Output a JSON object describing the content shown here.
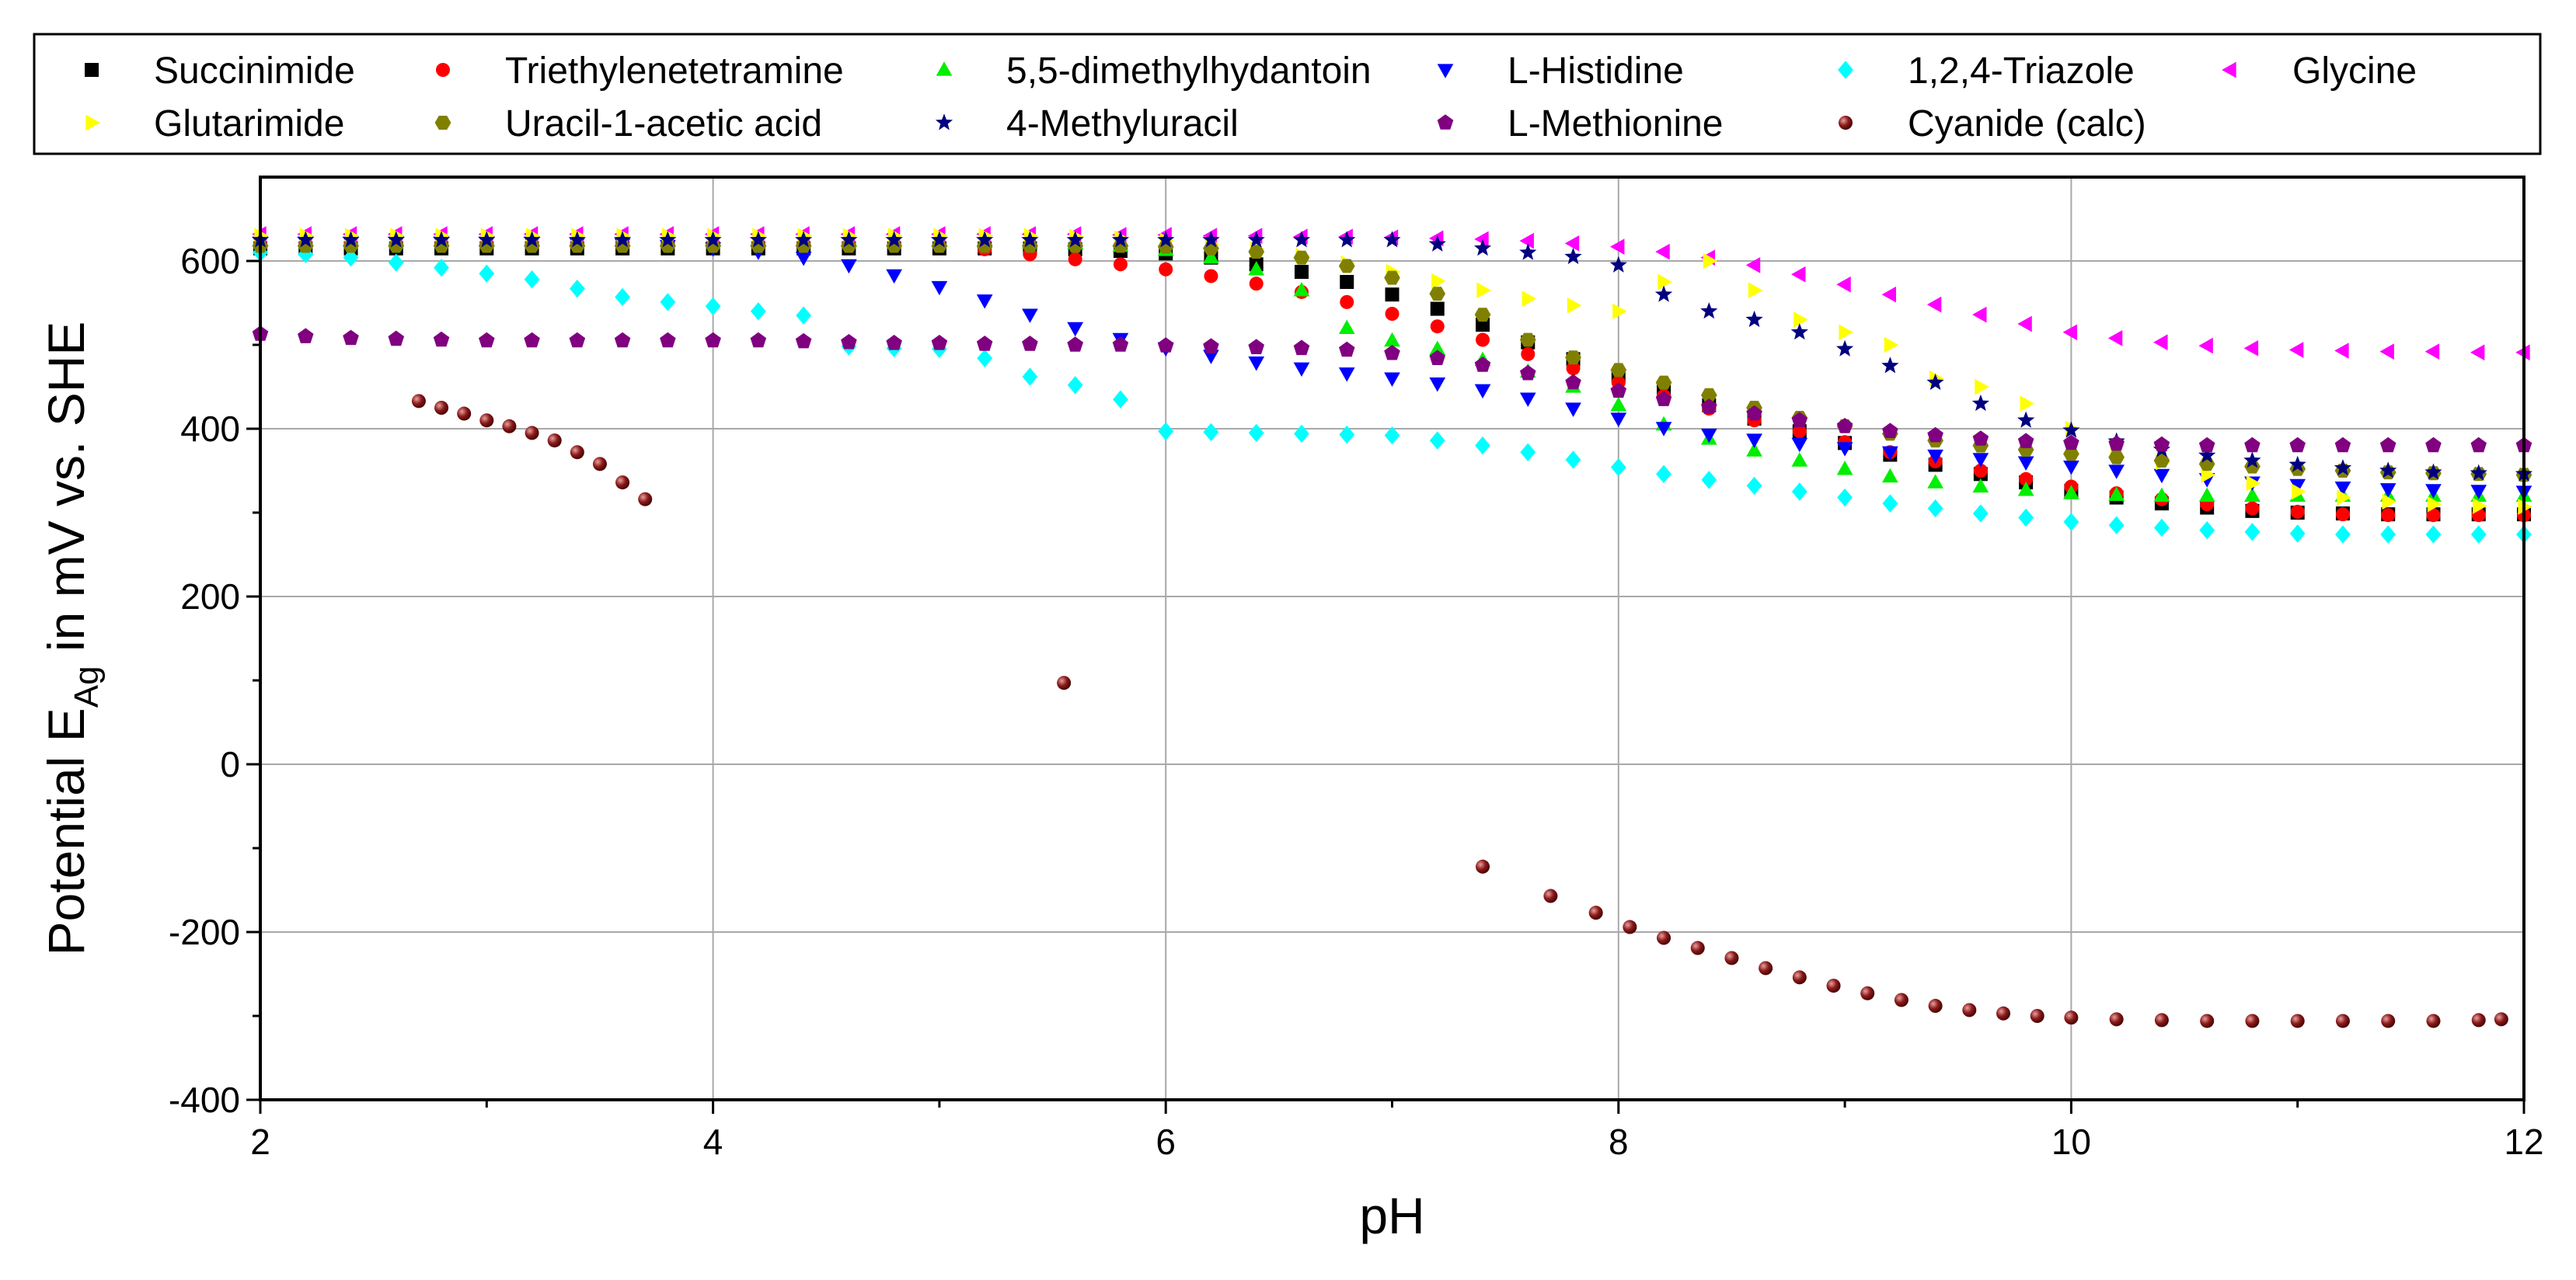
{
  "chart_data": {
    "type": "scatter",
    "title": "",
    "xlabel": "pH",
    "ylabel_main": "Potential E",
    "ylabel_sub": "Ag",
    "ylabel_tail": " in mV vs. SHE",
    "xlim": [
      2,
      12
    ],
    "ylim": [
      -400,
      700
    ],
    "xticks": [
      2,
      4,
      6,
      8,
      10,
      12
    ],
    "yticks": [
      -400,
      -200,
      0,
      200,
      400,
      600
    ],
    "grid": true,
    "legend_position": "top",
    "series": [
      {
        "name": "Succinimide",
        "color": "#000000",
        "marker": "square",
        "x": [
          2.0,
          2.2,
          2.4,
          2.6,
          2.8,
          3.0,
          3.2,
          3.4,
          3.6,
          3.8,
          4.0,
          4.2,
          4.4,
          4.6,
          4.8,
          5.0,
          5.2,
          5.4,
          5.6,
          5.8,
          6.0,
          6.2,
          6.4,
          6.6,
          6.8,
          7.0,
          7.2,
          7.4,
          7.6,
          7.8,
          8.0,
          8.2,
          8.4,
          8.6,
          8.8,
          9.0,
          9.2,
          9.4,
          9.6,
          9.8,
          10.0,
          10.2,
          10.4,
          10.6,
          10.8,
          11.0,
          11.2,
          11.4,
          11.6,
          11.8,
          12.0
        ],
        "y": [
          615,
          615,
          615,
          615,
          615,
          615,
          615,
          615,
          615,
          615,
          615,
          615,
          615,
          615,
          615,
          615,
          615,
          615,
          614,
          612,
          609,
          604,
          596,
          587,
          575,
          560,
          543,
          524,
          503,
          483,
          463,
          445,
          428,
          412,
          397,
          383,
          369,
          357,
          346,
          336,
          326,
          318,
          311,
          306,
          302,
          300,
          299,
          298,
          298,
          298,
          298
        ]
      },
      {
        "name": "Triethylenetetramine",
        "color": "#ff0000",
        "marker": "circle",
        "x": [
          2.0,
          2.2,
          2.4,
          2.6,
          2.8,
          3.0,
          3.2,
          3.4,
          3.6,
          3.8,
          4.0,
          4.2,
          4.4,
          4.6,
          4.8,
          5.0,
          5.2,
          5.4,
          5.6,
          5.8,
          6.0,
          6.2,
          6.4,
          6.6,
          6.8,
          7.0,
          7.2,
          7.4,
          7.6,
          7.8,
          8.0,
          8.2,
          8.4,
          8.6,
          8.8,
          9.0,
          9.2,
          9.4,
          9.6,
          9.8,
          10.0,
          10.2,
          10.4,
          10.6,
          10.8,
          11.0,
          11.2,
          11.4,
          11.6,
          11.8,
          12.0
        ],
        "y": [
          620,
          620,
          620,
          620,
          620,
          620,
          620,
          620,
          620,
          620,
          620,
          620,
          620,
          620,
          619,
          618,
          614,
          608,
          602,
          596,
          590,
          582,
          573,
          563,
          551,
          537,
          522,
          506,
          489,
          472,
          455,
          439,
          424,
          410,
          397,
          384,
          372,
          361,
          350,
          340,
          331,
          323,
          316,
          310,
          305,
          301,
          298,
          297,
          297,
          297,
          297
        ]
      },
      {
        "name": "5,5-dimethylhydantoin",
        "color": "#00ee00",
        "marker": "triangle-up",
        "x": [
          2.0,
          2.2,
          2.4,
          2.6,
          2.8,
          3.0,
          3.2,
          3.4,
          3.6,
          3.8,
          4.0,
          4.2,
          4.4,
          4.6,
          4.8,
          5.0,
          5.2,
          5.4,
          5.6,
          5.8,
          6.0,
          6.2,
          6.4,
          6.6,
          6.8,
          7.0,
          7.2,
          7.4,
          7.6,
          7.8,
          8.0,
          8.2,
          8.4,
          8.6,
          8.8,
          9.0,
          9.2,
          9.4,
          9.6,
          9.8,
          10.0,
          10.2,
          10.4,
          10.6,
          10.8,
          11.0,
          11.2,
          11.4,
          11.6,
          11.8,
          12.0
        ],
        "y": [
          625,
          625,
          625,
          625,
          625,
          625,
          625,
          625,
          625,
          625,
          625,
          625,
          625,
          624,
          624,
          624,
          623,
          622,
          621,
          618,
          613,
          604,
          590,
          565,
          520,
          505,
          495,
          482,
          468,
          450,
          428,
          405,
          388,
          374,
          362,
          352,
          343,
          336,
          331,
          327,
          323,
          321,
          320,
          320,
          320,
          320,
          320,
          320,
          320,
          320,
          320
        ]
      },
      {
        "name": "L-Histidine",
        "color": "#0000ff",
        "marker": "triangle-down",
        "x": [
          2.0,
          2.2,
          2.4,
          2.6,
          2.8,
          3.0,
          3.2,
          3.4,
          3.6,
          3.8,
          4.0,
          4.2,
          4.4,
          4.6,
          4.8,
          5.0,
          5.2,
          5.4,
          5.6,
          5.8,
          6.0,
          6.2,
          6.4,
          6.6,
          6.8,
          7.0,
          7.2,
          7.4,
          7.6,
          7.8,
          8.0,
          8.2,
          8.4,
          8.6,
          8.8,
          9.0,
          9.2,
          9.4,
          9.6,
          9.8,
          10.0,
          10.2,
          10.4,
          10.6,
          10.8,
          11.0,
          11.2,
          11.4,
          11.6,
          11.8,
          12.0
        ],
        "y": [
          622,
          622,
          622,
          622,
          622,
          622,
          622,
          621,
          620,
          618,
          615,
          611,
          604,
          595,
          583,
          569,
          553,
          536,
          520,
          507,
          496,
          487,
          479,
          472,
          466,
          460,
          454,
          446,
          436,
          424,
          412,
          401,
          393,
          387,
          382,
          377,
          372,
          368,
          364,
          360,
          355,
          350,
          345,
          340,
          336,
          333,
          330,
          328,
          327,
          326,
          325
        ]
      },
      {
        "name": "1,2,4-Triazole",
        "color": "#00ffff",
        "marker": "diamond",
        "x": [
          2.0,
          2.2,
          2.4,
          2.6,
          2.8,
          3.0,
          3.2,
          3.4,
          3.6,
          3.8,
          4.0,
          4.2,
          4.4,
          4.6,
          4.8,
          5.0,
          5.2,
          5.4,
          5.6,
          5.8,
          6.0,
          6.2,
          6.4,
          6.6,
          6.8,
          7.0,
          7.2,
          7.4,
          7.6,
          7.8,
          8.0,
          8.2,
          8.4,
          8.6,
          8.8,
          9.0,
          9.2,
          9.4,
          9.6,
          9.8,
          10.0,
          10.2,
          10.4,
          10.6,
          10.8,
          11.0,
          11.2,
          11.4,
          11.6,
          11.8,
          12.0
        ],
        "y": [
          610,
          608,
          604,
          598,
          592,
          585,
          578,
          567,
          557,
          551,
          546,
          540,
          535,
          498,
          496,
          495,
          484,
          462,
          452,
          435,
          397,
          396,
          395,
          394,
          393,
          392,
          386,
          380,
          372,
          363,
          354,
          346,
          339,
          332,
          325,
          318,
          311,
          305,
          299,
          294,
          289,
          285,
          282,
          279,
          277,
          275,
          274,
          274,
          274,
          274,
          274
        ]
      },
      {
        "name": "Glycine",
        "color": "#ff00ff",
        "marker": "triangle-left",
        "x": [
          2.0,
          2.2,
          2.4,
          2.6,
          2.8,
          3.0,
          3.2,
          3.4,
          3.6,
          3.8,
          4.0,
          4.2,
          4.4,
          4.6,
          4.8,
          5.0,
          5.2,
          5.4,
          5.6,
          5.8,
          6.0,
          6.2,
          6.4,
          6.6,
          6.8,
          7.0,
          7.2,
          7.4,
          7.6,
          7.8,
          8.0,
          8.2,
          8.4,
          8.6,
          8.8,
          9.0,
          9.2,
          9.4,
          9.6,
          9.8,
          10.0,
          10.2,
          10.4,
          10.6,
          10.8,
          11.0,
          11.2,
          11.4,
          11.6,
          11.8,
          12.0
        ],
        "y": [
          632,
          632,
          632,
          632,
          632,
          632,
          632,
          632,
          632,
          632,
          632,
          632,
          632,
          632,
          632,
          632,
          632,
          632,
          632,
          631,
          631,
          630,
          630,
          629,
          629,
          628,
          627,
          626,
          624,
          621,
          617,
          611,
          604,
          595,
          584,
          572,
          560,
          548,
          536,
          525,
          515,
          508,
          503,
          499,
          496,
          494,
          493,
          492,
          492,
          491,
          491
        ]
      },
      {
        "name": "Glutarimide",
        "color": "#ffff00",
        "marker": "triangle-right",
        "x": [
          2.0,
          2.2,
          2.4,
          2.6,
          2.8,
          3.0,
          3.2,
          3.4,
          3.6,
          3.8,
          4.0,
          4.2,
          4.4,
          4.6,
          4.8,
          5.0,
          5.2,
          5.4,
          5.6,
          5.8,
          6.0,
          6.2,
          6.4,
          6.6,
          6.8,
          7.0,
          7.2,
          7.4,
          7.6,
          7.8,
          8.0,
          8.2,
          8.4,
          8.6,
          8.8,
          9.0,
          9.2,
          9.4,
          9.6,
          9.8,
          10.0,
          10.2,
          10.4,
          10.6,
          10.8,
          11.0,
          11.2,
          11.4,
          11.6,
          11.8,
          12.0
        ],
        "y": [
          630,
          630,
          630,
          630,
          630,
          630,
          630,
          630,
          630,
          630,
          630,
          630,
          630,
          630,
          630,
          630,
          630,
          630,
          629,
          627,
          624,
          620,
          614,
          606,
          597,
          587,
          576,
          565,
          555,
          547,
          540,
          575,
          600,
          565,
          530,
          515,
          500,
          460,
          450,
          430,
          400,
          380,
          360,
          345,
          335,
          325,
          318,
          313,
          310,
          308,
          307
        ]
      },
      {
        "name": "Uracil-1-acetic acid",
        "color": "#808000",
        "marker": "hexagon",
        "x": [
          2.0,
          2.2,
          2.4,
          2.6,
          2.8,
          3.0,
          3.2,
          3.4,
          3.6,
          3.8,
          4.0,
          4.2,
          4.4,
          4.6,
          4.8,
          5.0,
          5.2,
          5.4,
          5.6,
          5.8,
          6.0,
          6.2,
          6.4,
          6.6,
          6.8,
          7.0,
          7.2,
          7.4,
          7.6,
          7.8,
          8.0,
          8.2,
          8.4,
          8.6,
          8.8,
          9.0,
          9.2,
          9.4,
          9.6,
          9.8,
          10.0,
          10.2,
          10.4,
          10.6,
          10.8,
          11.0,
          11.2,
          11.4,
          11.6,
          11.8,
          12.0
        ],
        "y": [
          618,
          618,
          618,
          618,
          618,
          618,
          618,
          618,
          618,
          618,
          618,
          618,
          618,
          618,
          618,
          618,
          618,
          618,
          618,
          618,
          617,
          615,
          611,
          604,
          594,
          580,
          561,
          536,
          506,
          485,
          470,
          455,
          440,
          425,
          413,
          403,
          394,
          386,
          380,
          375,
          370,
          366,
          362,
          358,
          355,
          352,
          350,
          348,
          347,
          346,
          345
        ]
      },
      {
        "name": "4-Methyluracil",
        "color": "#000080",
        "marker": "star",
        "x": [
          2.0,
          2.2,
          2.4,
          2.6,
          2.8,
          3.0,
          3.2,
          3.4,
          3.6,
          3.8,
          4.0,
          4.2,
          4.4,
          4.6,
          4.8,
          5.0,
          5.2,
          5.4,
          5.6,
          5.8,
          6.0,
          6.2,
          6.4,
          6.6,
          6.8,
          7.0,
          7.2,
          7.4,
          7.6,
          7.8,
          8.0,
          8.2,
          8.4,
          8.6,
          8.8,
          9.0,
          9.2,
          9.4,
          9.6,
          9.8,
          10.0,
          10.2,
          10.4,
          10.6,
          10.8,
          11.0,
          11.2,
          11.4,
          11.6,
          11.8,
          12.0
        ],
        "y": [
          625,
          625,
          625,
          625,
          625,
          625,
          625,
          625,
          625,
          625,
          625,
          625,
          625,
          625,
          625,
          625,
          625,
          625,
          625,
          625,
          625,
          625,
          625,
          625,
          625,
          625,
          620,
          615,
          610,
          605,
          595,
          560,
          540,
          530,
          515,
          495,
          475,
          455,
          430,
          410,
          398,
          385,
          375,
          368,
          362,
          357,
          353,
          350,
          348,
          347,
          346
        ]
      },
      {
        "name": "L-Methionine",
        "color": "#800080",
        "marker": "pentagon",
        "x": [
          2.0,
          2.2,
          2.4,
          2.6,
          2.8,
          3.0,
          3.2,
          3.4,
          3.6,
          3.8,
          4.0,
          4.2,
          4.4,
          4.6,
          4.8,
          5.0,
          5.2,
          5.4,
          5.6,
          5.8,
          6.0,
          6.2,
          6.4,
          6.6,
          6.8,
          7.0,
          7.2,
          7.4,
          7.6,
          7.8,
          8.0,
          8.2,
          8.4,
          8.6,
          8.8,
          9.0,
          9.2,
          9.4,
          9.6,
          9.8,
          10.0,
          10.2,
          10.4,
          10.6,
          10.8,
          11.0,
          11.2,
          11.4,
          11.6,
          11.8,
          12.0
        ],
        "y": [
          513,
          510,
          508,
          507,
          506,
          505,
          505,
          505,
          505,
          505,
          505,
          505,
          504,
          503,
          502,
          502,
          501,
          501,
          500,
          500,
          499,
          498,
          497,
          496,
          494,
          490,
          484,
          476,
          466,
          455,
          445,
          435,
          426,
          418,
          410,
          403,
          397,
          392,
          388,
          385,
          383,
          382,
          381,
          380,
          380,
          380,
          380,
          380,
          380,
          380,
          380
        ]
      },
      {
        "name": "Cyanide (calc)",
        "color": "#8b1a1a",
        "marker": "sphere",
        "x": [
          2.7,
          2.8,
          2.9,
          3.0,
          3.1,
          3.2,
          3.3,
          3.4,
          3.5,
          3.6,
          3.7,
          5.55,
          7.4,
          7.7,
          7.9,
          8.05,
          8.2,
          8.35,
          8.5,
          8.65,
          8.8,
          8.95,
          9.1,
          9.25,
          9.4,
          9.55,
          9.7,
          9.85,
          10.0,
          10.2,
          10.4,
          10.6,
          10.8,
          11.0,
          11.2,
          11.4,
          11.6,
          11.8,
          11.9
        ],
        "y": [
          433,
          425,
          418,
          410,
          403,
          395,
          386,
          372,
          358,
          336,
          316,
          97,
          -122,
          -157,
          -177,
          -194,
          -207,
          -219,
          -231,
          -243,
          -254,
          -264,
          -273,
          -281,
          -288,
          -293,
          -297,
          -300,
          -302,
          -304,
          -305,
          -306,
          -306,
          -306,
          -306,
          -306,
          -306,
          -305,
          -304
        ]
      }
    ]
  }
}
